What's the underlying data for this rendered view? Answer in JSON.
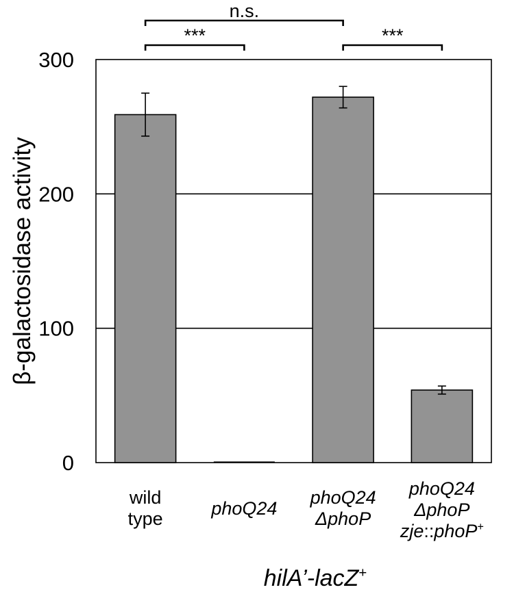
{
  "chart_data": {
    "type": "bar",
    "categories": [
      {
        "lines": [
          {
            "parts": [
              {
                "text": "wild",
                "italic": false
              }
            ]
          },
          {
            "parts": [
              {
                "text": "type",
                "italic": false
              }
            ]
          }
        ]
      },
      {
        "lines": [
          {
            "parts": [
              {
                "text": "phoQ24",
                "italic": true
              }
            ]
          }
        ]
      },
      {
        "lines": [
          {
            "parts": [
              {
                "text": "phoQ24",
                "italic": true
              }
            ]
          },
          {
            "parts": [
              {
                "text": "ΔphoP",
                "italic": true
              }
            ]
          }
        ]
      },
      {
        "lines": [
          {
            "parts": [
              {
                "text": "phoQ24",
                "italic": true
              }
            ]
          },
          {
            "parts": [
              {
                "text": "ΔphoP",
                "italic": true
              }
            ]
          },
          {
            "parts": [
              {
                "text": "zje",
                "italic": true
              },
              {
                "text": "::",
                "italic": false
              },
              {
                "text": "phoP",
                "italic": true
              },
              {
                "text": "+",
                "italic": false,
                "sup": true
              }
            ]
          }
        ]
      }
    ],
    "values": [
      259,
      0,
      272,
      54
    ],
    "errors": [
      16,
      0,
      8,
      3
    ],
    "ylabel": "β-galactosidase activity",
    "xlabel": {
      "main": "hilA’-lacZ",
      "sup": "+"
    },
    "ylim": [
      0,
      300
    ],
    "yticks": [
      "0",
      "100",
      "200",
      "300"
    ],
    "grid": true,
    "bar_color": "#939393",
    "significance": [
      {
        "from": 0,
        "to": 1,
        "label": "***",
        "level": 1
      },
      {
        "from": 2,
        "to": 3,
        "label": "***",
        "level": 1
      },
      {
        "from": 0,
        "to": 2,
        "label": "n.s.",
        "level": 2
      }
    ]
  }
}
